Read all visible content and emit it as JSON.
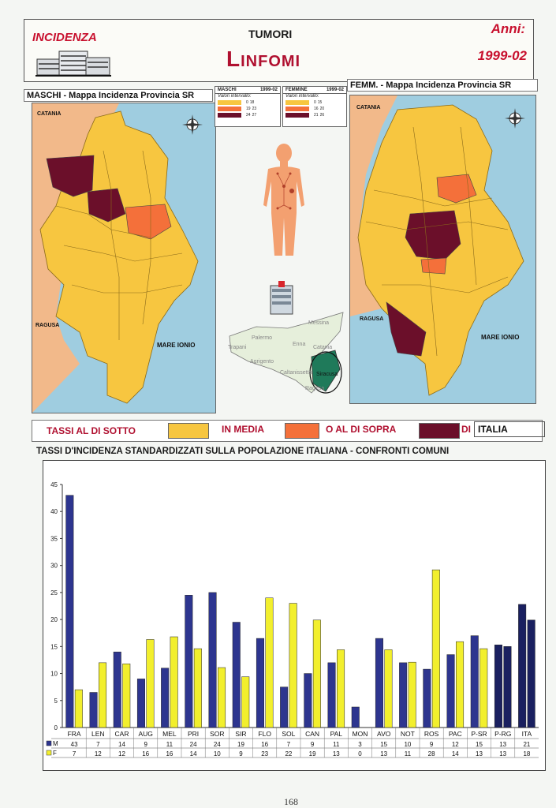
{
  "header": {
    "left_title": "INCIDENZA",
    "top": "TUMORI",
    "main": "Linfomi",
    "anni_label": "Anni:",
    "years": "1999-02"
  },
  "maps": {
    "male_title": "MASCHI - Mappa Incidenza Provincia SR",
    "female_title": "FEMM. - Mappa Incidenza Provincia SR",
    "catania": "CATANIA",
    "ragusa": "RAGUSA",
    "sea": "MARE IONIO",
    "compass": [
      "N",
      "S",
      "E",
      "W"
    ]
  },
  "mini_legends": {
    "male": {
      "label": "MASCHI",
      "years": "1999-02",
      "note": "Valori intervallo:",
      "rows": [
        [
          "0",
          "18"
        ],
        [
          "19",
          "23"
        ],
        [
          "24",
          "27"
        ]
      ]
    },
    "female": {
      "label": "FEMMINE",
      "years": "1999-02",
      "note": "Valori intervallo:",
      "rows": [
        [
          "0",
          "15"
        ],
        [
          "16",
          "20"
        ],
        [
          "21",
          "26"
        ]
      ]
    }
  },
  "sicily_map": {
    "labels": [
      "Messina",
      "Palermo",
      "Enna",
      "Catania",
      "Trapani",
      "Agrigento",
      "Caltanissetta",
      "Siracusa",
      "Ragusa"
    ]
  },
  "color_legend": {
    "below": "TASSI AL DI SOTTO",
    "average": "IN MEDIA",
    "above": "O AL DI SOPRA",
    "di": "DI",
    "italia": "ITALIA",
    "colors": {
      "below": "#f7c640",
      "average": "#f7c640",
      "above": "#f4703a",
      "high": "#6b0f2a"
    }
  },
  "chart_title": "TASSI D'INCIDENZA STANDARDIZZATI SULLA POPOLAZIONE ITALIANA - CONFRONTI COMUNI",
  "chart_data": {
    "type": "bar",
    "ylim": [
      0,
      45
    ],
    "yticks": [
      0,
      5,
      10,
      15,
      20,
      25,
      30,
      35,
      40,
      45
    ],
    "categories": [
      "FRA",
      "LEN",
      "CAR",
      "AUG",
      "MEL",
      "PRI",
      "SOR",
      "SIR",
      "FLO",
      "SOL",
      "CAN",
      "PAL",
      "MON",
      "AVO",
      "NOT",
      "ROS",
      "PAC",
      "P-SR",
      "P-RG",
      "ITA"
    ],
    "series": [
      {
        "name": "M",
        "color": "#2d358f",
        "values": [
          43,
          7,
          14,
          9,
          11,
          24,
          24,
          19,
          16,
          7,
          9,
          11,
          3,
          15,
          10,
          9,
          12,
          15,
          13,
          21
        ],
        "plot": [
          43,
          6.5,
          14,
          9,
          11,
          24.5,
          25,
          19.5,
          16.5,
          7.5,
          10,
          12,
          3.8,
          16.5,
          12,
          10.8,
          13.5,
          17,
          15.3,
          22.8
        ]
      },
      {
        "name": "F",
        "color": "#f2ef2d",
        "values": [
          7,
          12,
          12,
          16,
          16,
          14,
          10,
          9,
          23,
          22,
          19,
          13,
          0,
          13,
          11,
          28,
          14,
          13,
          13,
          18
        ],
        "plot": [
          7,
          12,
          11.8,
          16.3,
          16.8,
          14.6,
          11.1,
          9.4,
          24,
          23,
          19.9,
          14.4,
          0,
          14.4,
          12.1,
          29.2,
          15.9,
          14.6,
          15,
          19.9
        ]
      }
    ],
    "dark_categories": [
      "P-RG",
      "ITA"
    ],
    "dark_color": "#1a2060",
    "row_labels": [
      "M",
      "F"
    ]
  },
  "page_number": "168"
}
